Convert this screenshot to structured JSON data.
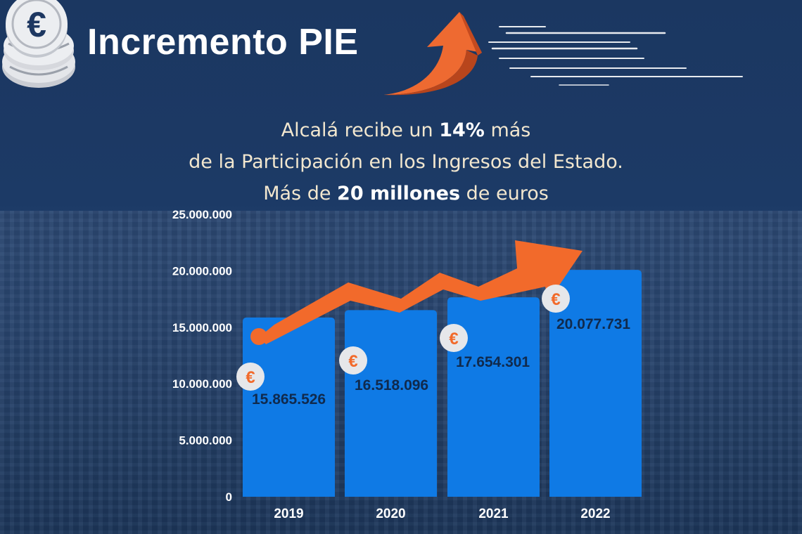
{
  "header": {
    "title": "Incremento PIE",
    "coin_icon": "euro-coins-icon",
    "arrow_icon": "rising-arrow-icon"
  },
  "subtitle": {
    "line1_pre": "Alcalá recibe un ",
    "line1_bold": "14%",
    "line1_post": " más",
    "line2": "de la Participación en los Ingresos del Estado.",
    "line3_pre": "Más de ",
    "line3_bold": "20 millones",
    "line3_post": " de euros"
  },
  "colors": {
    "background": "#1b3660",
    "bar": "#0f7ae5",
    "accent": "#f26a2b",
    "text": "#ffffff"
  },
  "chart_data": {
    "type": "bar",
    "categories": [
      "2019",
      "2020",
      "2021",
      "2022"
    ],
    "values": [
      15865526,
      16518096,
      17654301,
      20077731
    ],
    "value_labels": [
      "15.865.526",
      "16.518.096",
      "17.654.301",
      "20.077.731"
    ],
    "ylim": [
      0,
      25000000
    ],
    "yticks": [
      0,
      5000000,
      10000000,
      15000000,
      20000000,
      25000000
    ],
    "ytick_labels": [
      "0",
      "5.000.000",
      "10.000.000",
      "15.000.000",
      "20.000.000",
      "25.000.000"
    ],
    "value_icon": "€",
    "trend_arrow": "rising",
    "grid": false,
    "legend": "none"
  }
}
